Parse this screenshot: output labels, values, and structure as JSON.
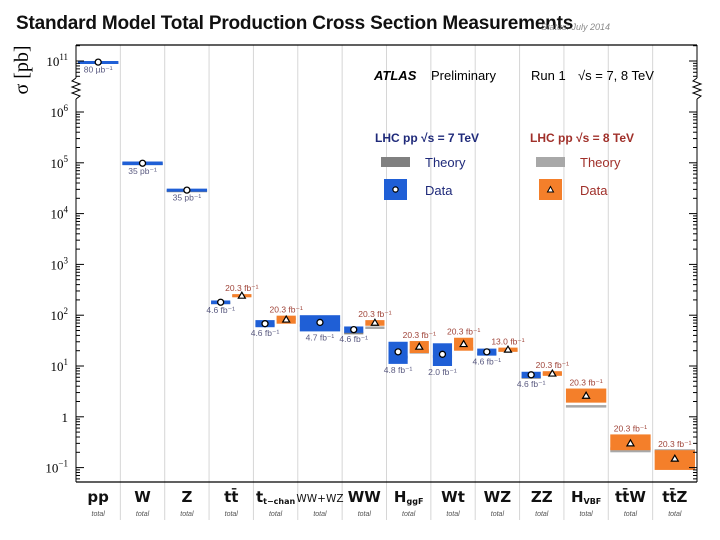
{
  "title": "Standard Model Total Production Cross Section Measurements",
  "status": "Status: July 2014",
  "chart_data": {
    "type": "scatter",
    "title": "Standard Model Total Production Cross Section Measurements",
    "ylabel": "σ [pb]",
    "xlabel": "",
    "yscale": "log (broken axis between 10^6 and 10^11)",
    "yticks": [
      {
        "value": 100000000000.0,
        "label": "10",
        "sup": "11"
      },
      {
        "value": 1000000.0,
        "label": "10",
        "sup": "6"
      },
      {
        "value": 100000.0,
        "label": "10",
        "sup": "5"
      },
      {
        "value": 10000.0,
        "label": "10",
        "sup": "4"
      },
      {
        "value": 1000.0,
        "label": "10",
        "sup": "3"
      },
      {
        "value": 100.0,
        "label": "10",
        "sup": "2"
      },
      {
        "value": 10.0,
        "label": "10",
        "sup": "1"
      },
      {
        "value": 1,
        "label": "1",
        "sup": ""
      },
      {
        "value": 0.1,
        "label": "10",
        "sup": "−1"
      }
    ],
    "ylim": [
      0.05,
      100000000000.0
    ],
    "grid": "vertical category separators",
    "annotations": {
      "experiment": "ATLAS",
      "label": "Preliminary",
      "run": "Run 1",
      "energy": "√s = 7, 8 TeV"
    },
    "legend": {
      "placement": "top-right",
      "groups": [
        {
          "header": "LHC pp  √s = 7 TeV",
          "color": "#1f2a7a",
          "theory_label": "Theory",
          "data_label": "Data",
          "theory_color": "#808080",
          "data_color": "#1f5fd6",
          "marker": "circle"
        },
        {
          "header": "LHC pp  √s = 8 TeV",
          "color": "#a0302a",
          "theory_label": "Theory",
          "data_label": "Data",
          "theory_color": "#a8a8a8",
          "data_color": "#f47f2a",
          "marker": "triangle"
        }
      ]
    },
    "categories": [
      {
        "name": "pp",
        "sub": "",
        "qualifier": "total"
      },
      {
        "name": "W",
        "sub": "",
        "qualifier": "total"
      },
      {
        "name": "Z",
        "sub": "",
        "qualifier": "total"
      },
      {
        "name": "tt̄",
        "sub": "",
        "qualifier": "total"
      },
      {
        "name": "t",
        "sub": "t−chan",
        "qualifier": "total"
      },
      {
        "name": "WW+WZ",
        "sub": "",
        "qualifier": "total"
      },
      {
        "name": "WW",
        "sub": "",
        "qualifier": "total"
      },
      {
        "name": "H",
        "sub": "ggF",
        "qualifier": "total"
      },
      {
        "name": "Wt",
        "sub": "",
        "qualifier": "total"
      },
      {
        "name": "WZ",
        "sub": "",
        "qualifier": "total"
      },
      {
        "name": "ZZ",
        "sub": "",
        "qualifier": "total"
      },
      {
        "name": "H",
        "sub": "VBF",
        "qualifier": "total"
      },
      {
        "name": "tt̄W",
        "sub": "",
        "qualifier": "total"
      },
      {
        "name": "tt̄Z",
        "sub": "",
        "qualifier": "total"
      }
    ],
    "series": [
      {
        "name": "LHC pp √s = 7 TeV Data",
        "marker": "circle",
        "points": [
          {
            "category": "pp",
            "value": 95000000000.0,
            "lo": 90000000000.0,
            "hi": 100000000000.0,
            "lumi": "80 µb⁻¹"
          },
          {
            "category": "W",
            "value": 98000,
            "lo": 90000,
            "hi": 106000,
            "lumi": "35 pb⁻¹"
          },
          {
            "category": "Z",
            "value": 29000,
            "lo": 27000,
            "hi": 31000,
            "lumi": "35 pb⁻¹"
          },
          {
            "category": "tt̄",
            "value": 180,
            "lo": 165,
            "hi": 195,
            "lumi": "4.6 fb⁻¹"
          },
          {
            "category": "t",
            "value": 68,
            "lo": 58,
            "hi": 80,
            "lumi": "4.6 fb⁻¹"
          },
          {
            "category": "WW+WZ",
            "value": 72,
            "lo": 48,
            "hi": 100,
            "lumi": "4.7 fb⁻¹"
          },
          {
            "category": "WW",
            "value": 52,
            "lo": 45,
            "hi": 60,
            "lumi": "4.6 fb⁻¹"
          },
          {
            "category": "H",
            "value": 19,
            "lo": 11,
            "hi": 30,
            "lumi": "4.8 fb⁻¹"
          },
          {
            "category": "Wt",
            "value": 17,
            "lo": 10,
            "hi": 28,
            "lumi": "2.0 fb⁻¹"
          },
          {
            "category": "WZ",
            "value": 19,
            "lo": 16,
            "hi": 22,
            "lumi": "4.6 fb⁻¹"
          },
          {
            "category": "ZZ",
            "value": 6.7,
            "lo": 5.8,
            "hi": 7.7,
            "lumi": "4.6 fb⁻¹"
          }
        ]
      },
      {
        "name": "LHC pp √s = 8 TeV Data",
        "marker": "triangle",
        "points": [
          {
            "category": "tt̄",
            "value": 242,
            "lo": 225,
            "hi": 260,
            "lumi": "20.3 fb⁻¹"
          },
          {
            "category": "t",
            "value": 82,
            "lo": 68,
            "hi": 98,
            "lumi": "20.3 fb⁻¹"
          },
          {
            "category": "WW",
            "value": 71,
            "lo": 62,
            "hi": 80,
            "lumi": "20.3 fb⁻¹"
          },
          {
            "category": "H",
            "value": 24,
            "lo": 18,
            "hi": 31,
            "lumi": "20.3 fb⁻¹"
          },
          {
            "category": "Wt",
            "value": 27,
            "lo": 20,
            "hi": 36,
            "lumi": "20.3 fb⁻¹"
          },
          {
            "category": "WZ",
            "value": 21,
            "lo": 19,
            "hi": 23,
            "lumi": "13.0 fb⁻¹"
          },
          {
            "category": "ZZ",
            "value": 7.1,
            "lo": 6.4,
            "hi": 7.9,
            "lumi": "20.3 fb⁻¹"
          },
          {
            "category": "H",
            "sub": "VBF",
            "value": 2.6,
            "lo": 1.9,
            "hi": 3.6,
            "lumi": "20.3 fb⁻¹"
          },
          {
            "category": "tt̄W",
            "value": 0.3,
            "lo": 0.22,
            "hi": 0.45,
            "lumi": "20.3 fb⁻¹"
          },
          {
            "category": "tt̄Z",
            "value": 0.15,
            "lo": 0.09,
            "hi": 0.22,
            "lumi": "20.3 fb⁻¹"
          }
        ]
      }
    ],
    "theory": [
      {
        "category": "pp",
        "energy": "7 TeV",
        "lo": 93000000000.0,
        "hi": 98000000000.0
      },
      {
        "category": "W",
        "energy": "7 TeV",
        "lo": 96000,
        "hi": 101000
      },
      {
        "category": "Z",
        "energy": "7 TeV",
        "lo": 28000,
        "hi": 29500
      },
      {
        "category": "tt̄",
        "energy": "7 TeV",
        "lo": 165,
        "hi": 185
      },
      {
        "category": "tt̄",
        "energy": "8 TeV",
        "lo": 230,
        "hi": 255
      },
      {
        "category": "t",
        "energy": "7 TeV",
        "lo": 62,
        "hi": 68
      },
      {
        "category": "t",
        "energy": "8 TeV",
        "lo": 84,
        "hi": 90
      },
      {
        "category": "WW+WZ",
        "energy": "7 TeV",
        "lo": 60,
        "hi": 66
      },
      {
        "category": "WW",
        "energy": "7 TeV",
        "lo": 43,
        "hi": 47
      },
      {
        "category": "WW",
        "energy": "8 TeV",
        "lo": 54,
        "hi": 60
      },
      {
        "category": "H",
        "energy": "7 TeV",
        "lo": 14,
        "hi": 16
      },
      {
        "category": "H",
        "energy": "8 TeV",
        "lo": 17.5,
        "hi": 21.5
      },
      {
        "category": "Wt",
        "energy": "7 TeV",
        "lo": 14.5,
        "hi": 16.5
      },
      {
        "category": "Wt",
        "energy": "8 TeV",
        "lo": 21,
        "hi": 23.5
      },
      {
        "category": "WZ",
        "energy": "7 TeV",
        "lo": 16.5,
        "hi": 18.5
      },
      {
        "category": "WZ",
        "energy": "8 TeV",
        "lo": 19.5,
        "hi": 21.5
      },
      {
        "category": "ZZ",
        "energy": "7 TeV",
        "lo": 5.8,
        "hi": 6.3
      },
      {
        "category": "ZZ",
        "energy": "8 TeV",
        "lo": 6.8,
        "hi": 7.4
      },
      {
        "category": "H",
        "sub": "VBF",
        "energy": "8 TeV",
        "lo": 1.55,
        "hi": 1.7
      },
      {
        "category": "tt̄W",
        "energy": "8 TeV",
        "lo": 0.2,
        "hi": 0.25
      },
      {
        "category": "tt̄Z",
        "energy": "8 TeV",
        "lo": 0.19,
        "hi": 0.23
      }
    ]
  }
}
